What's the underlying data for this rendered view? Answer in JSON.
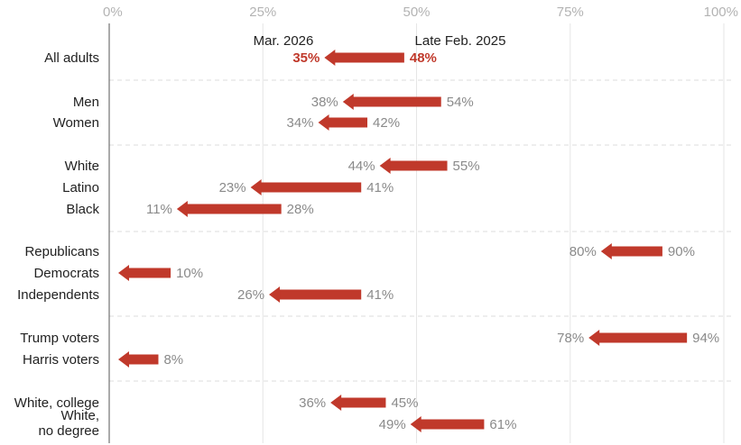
{
  "chart_data": {
    "type": "arrow-dot",
    "x_ticks": [
      "0%",
      "25%",
      "50%",
      "75%",
      "100%"
    ],
    "xlim": [
      0,
      100
    ],
    "start_label": "Late Feb. 2025",
    "end_label": "Mar. 2026",
    "series": [
      {
        "name": "Late Feb. 2025"
      },
      {
        "name": "Mar. 2026"
      }
    ],
    "groups": [
      {
        "rows": [
          {
            "category": "All adults",
            "start": 48,
            "end": 35,
            "highlight": true
          }
        ]
      },
      {
        "rows": [
          {
            "category": "Men",
            "start": 54,
            "end": 38
          },
          {
            "category": "Women",
            "start": 42,
            "end": 34
          }
        ]
      },
      {
        "rows": [
          {
            "category": "White",
            "start": 55,
            "end": 44
          },
          {
            "category": "Latino",
            "start": 41,
            "end": 23
          },
          {
            "category": "Black",
            "start": 28,
            "end": 11
          }
        ]
      },
      {
        "rows": [
          {
            "category": "Republicans",
            "start": 90,
            "end": 80
          },
          {
            "category": "Democrats",
            "start": 10,
            "end": null
          },
          {
            "category": "Independents",
            "start": 41,
            "end": 26
          }
        ]
      },
      {
        "rows": [
          {
            "category": "Trump voters",
            "start": 94,
            "end": 78
          },
          {
            "category": "Harris voters",
            "start": 8,
            "end": null
          }
        ]
      },
      {
        "rows": [
          {
            "category": "White, college",
            "start": 45,
            "end": 36
          },
          {
            "category": "White,\nno degree",
            "start": 61,
            "end": 49
          }
        ]
      }
    ],
    "colors": {
      "arrow": "#c0392b",
      "value_text": "#8a8a8a",
      "highlight_text": "#c0392b",
      "label_text": "#222222",
      "grid": "#e6e6e6",
      "separator": "#dddddd",
      "tick_text": "#b3b3b3"
    }
  }
}
